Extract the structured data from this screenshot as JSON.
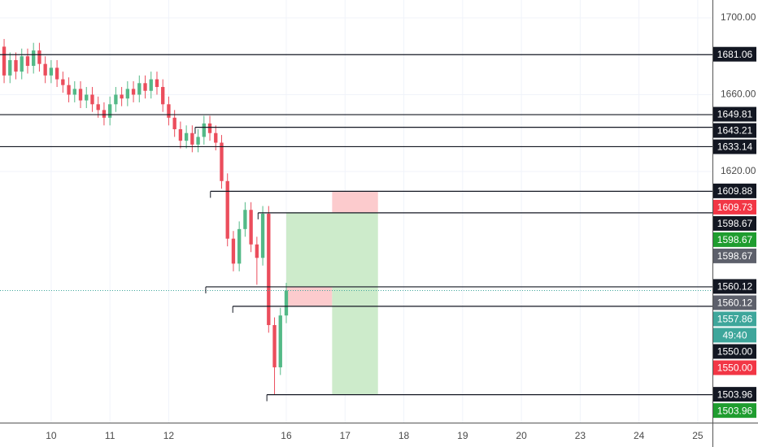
{
  "chart_data": {
    "type": "candlestick",
    "x": [
      -0.8,
      -0.7,
      -0.6,
      -0.5,
      -0.4,
      -0.3,
      -0.2,
      -0.1,
      0.0,
      0.1,
      0.2,
      0.3,
      0.4,
      0.5,
      0.6,
      0.7,
      0.8,
      0.9,
      1.0,
      1.1,
      1.2,
      1.3,
      1.4,
      1.5,
      1.6,
      1.7,
      1.8,
      1.9,
      2.0,
      2.1,
      2.2,
      2.3,
      2.4,
      2.5,
      2.6,
      2.7,
      2.8,
      2.9,
      3.0,
      3.1,
      3.2,
      3.3,
      3.4,
      3.5,
      3.6,
      3.7,
      3.8,
      3.9,
      4.0
    ],
    "open": [
      1685,
      1670,
      1678,
      1672,
      1680,
      1675,
      1683,
      1676,
      1670,
      1674,
      1668,
      1665,
      1660,
      1663,
      1657,
      1660,
      1655,
      1652,
      1648,
      1655,
      1660,
      1658,
      1663,
      1660,
      1666,
      1662,
      1668,
      1664,
      1655,
      1648,
      1642,
      1636,
      1640,
      1634,
      1638,
      1645,
      1640,
      1635,
      1615,
      1585,
      1572,
      1590,
      1600,
      1582,
      1575,
      1598,
      1540,
      1518,
      1545
    ],
    "high": [
      1689,
      1682,
      1682,
      1684,
      1684,
      1687,
      1687,
      1680,
      1678,
      1678,
      1672,
      1669,
      1667,
      1667,
      1664,
      1664,
      1659,
      1656,
      1659,
      1664,
      1664,
      1667,
      1667,
      1670,
      1670,
      1672,
      1672,
      1668,
      1659,
      1652,
      1646,
      1644,
      1644,
      1642,
      1649,
      1649,
      1644,
      1639,
      1619,
      1589,
      1594,
      1604,
      1604,
      1586,
      1602,
      1602,
      1544,
      1549,
      1562
    ],
    "low": [
      1666,
      1666,
      1668,
      1668,
      1671,
      1671,
      1672,
      1666,
      1666,
      1664,
      1661,
      1656,
      1656,
      1653,
      1653,
      1651,
      1648,
      1644,
      1644,
      1651,
      1654,
      1654,
      1656,
      1656,
      1658,
      1658,
      1660,
      1651,
      1644,
      1638,
      1632,
      1632,
      1630,
      1630,
      1634,
      1636,
      1631,
      1611,
      1581,
      1568,
      1568,
      1586,
      1578,
      1561,
      1571,
      1536,
      1504,
      1514,
      1541
    ],
    "close": [
      1670,
      1678,
      1672,
      1680,
      1675,
      1683,
      1676,
      1670,
      1674,
      1668,
      1665,
      1660,
      1663,
      1657,
      1660,
      1655,
      1652,
      1648,
      1655,
      1660,
      1658,
      1663,
      1660,
      1666,
      1662,
      1668,
      1664,
      1655,
      1648,
      1642,
      1636,
      1640,
      1634,
      1638,
      1645,
      1640,
      1635,
      1615,
      1585,
      1572,
      1590,
      1600,
      1582,
      1575,
      1598,
      1540,
      1518,
      1545,
      1558
    ],
    "up_color": "#53b987",
    "down_color": "#eb4d5c",
    "xlim": [
      -0.87,
      11.25
    ],
    "ylim": [
      1489.2,
      1709.3
    ],
    "xticks": [
      {
        "value": 0,
        "label": "10"
      },
      {
        "value": 1,
        "label": "11"
      },
      {
        "value": 2,
        "label": "12"
      },
      {
        "value": 4,
        "label": "16"
      },
      {
        "value": 5,
        "label": "17"
      },
      {
        "value": 6,
        "label": "18"
      },
      {
        "value": 7,
        "label": "19"
      },
      {
        "value": 8,
        "label": "20"
      },
      {
        "value": 9,
        "label": "23"
      },
      {
        "value": 10,
        "label": "24"
      },
      {
        "value": 11,
        "label": "25"
      }
    ],
    "yticks": [
      {
        "value": 1700,
        "label": "1700.00"
      },
      {
        "value": 1660,
        "label": "1660.00"
      },
      {
        "value": 1620,
        "label": "1620.00"
      }
    ],
    "grid": true,
    "zones": [
      {
        "x": [
          4.0,
          4.78
        ],
        "y": [
          1550.0,
          1560.12
        ],
        "color": "#fccbcd"
      },
      {
        "x": [
          4.0,
          5.56
        ],
        "y": [
          1560.12,
          1598.67
        ],
        "color": "#cdebcb"
      },
      {
        "x": [
          4.78,
          5.56
        ],
        "y": [
          1598.67,
          1609.73
        ],
        "color": "#fccbcd"
      },
      {
        "x": [
          4.78,
          5.56
        ],
        "y": [
          1503.96,
          1560.12
        ],
        "color": "#cdebcb"
      }
    ],
    "price_lines": [
      {
        "value": 1681.06
      },
      {
        "value": 1649.81
      },
      {
        "value": 1643.21,
        "x_start": 2.45
      },
      {
        "value": 1633.14
      },
      {
        "value": 1609.88,
        "x_start": 2.71
      },
      {
        "value": 1598.67,
        "x_start": 3.52
      },
      {
        "value": 1560.12,
        "x_start": 2.63
      },
      {
        "value": 1550.0,
        "x_start": 3.09
      },
      {
        "value": 1503.96,
        "x_start": 3.67
      }
    ],
    "price_labels": [
      {
        "value": 1681.06,
        "label": "1681.06",
        "color": "#131722"
      },
      {
        "value": 1649.81,
        "label": "1649.81",
        "color": "#131722"
      },
      {
        "value": 1643.21,
        "label": "1643.21",
        "color": "#131722"
      },
      {
        "value": 1633.14,
        "label": "1633.14",
        "color": "#131722"
      },
      {
        "value": 1609.88,
        "label": "1609.88",
        "color": "#131722"
      },
      {
        "value": 1609.73,
        "label": "1609.73",
        "color": "#f23645"
      },
      {
        "value": 1598.67,
        "label": "1598.67",
        "color": "#131722"
      },
      {
        "value": 1598.67,
        "label": "1598.67",
        "color": "#1f9d2f"
      },
      {
        "value": 1598.67,
        "label": "1598.67",
        "color": "#5d606b"
      },
      {
        "value": 1560.12,
        "label": "1560.12",
        "color": "#131722"
      },
      {
        "value": 1560.12,
        "label": "1560.12",
        "color": "#5d606b"
      },
      {
        "value": 1557.86,
        "label": "1557.86",
        "color": "#3ea69b"
      },
      {
        "label": "49:40",
        "color": "#3ea69b"
      },
      {
        "value": 1550.0,
        "label": "1550.00",
        "color": "#131722"
      },
      {
        "value": 1550.0,
        "label": "1550.00",
        "color": "#f23645"
      },
      {
        "value": 1503.96,
        "label": "1503.96",
        "color": "#131722"
      },
      {
        "value": 1503.96,
        "label": "1503.96",
        "color": "#1f9d2f"
      }
    ]
  }
}
